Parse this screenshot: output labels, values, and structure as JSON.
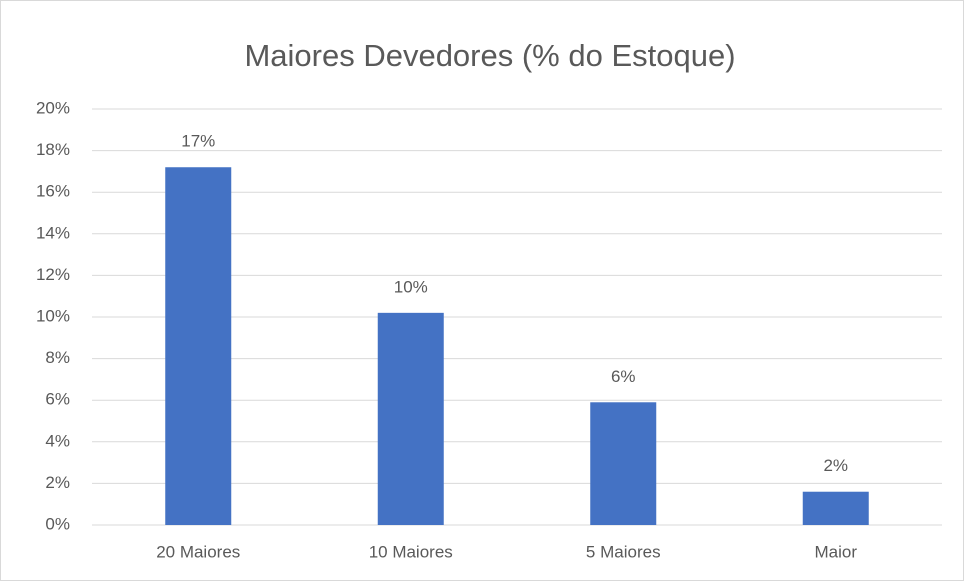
{
  "chart_data": {
    "type": "bar",
    "title": "Maiores Devedores (% do Estoque)",
    "categories": [
      "20 Maiores",
      "10 Maiores",
      "5 Maiores",
      "Maior"
    ],
    "values": [
      17.2,
      10.2,
      5.9,
      1.6
    ],
    "value_labels": [
      "17%",
      "10%",
      "6%",
      "2%"
    ],
    "color": "#4472c4",
    "ylim": [
      0,
      20
    ],
    "yticks": [
      {
        "value": 0,
        "label": "0%"
      },
      {
        "value": 2,
        "label": "2%"
      },
      {
        "value": 4,
        "label": "4%"
      },
      {
        "value": 6,
        "label": "6%"
      },
      {
        "value": 8,
        "label": "8%"
      },
      {
        "value": 10,
        "label": "10%"
      },
      {
        "value": 12,
        "label": "12%"
      },
      {
        "value": 14,
        "label": "14%"
      },
      {
        "value": 16,
        "label": "16%"
      },
      {
        "value": 18,
        "label": "18%"
      },
      {
        "value": 20,
        "label": "20%"
      }
    ],
    "grid": true
  }
}
